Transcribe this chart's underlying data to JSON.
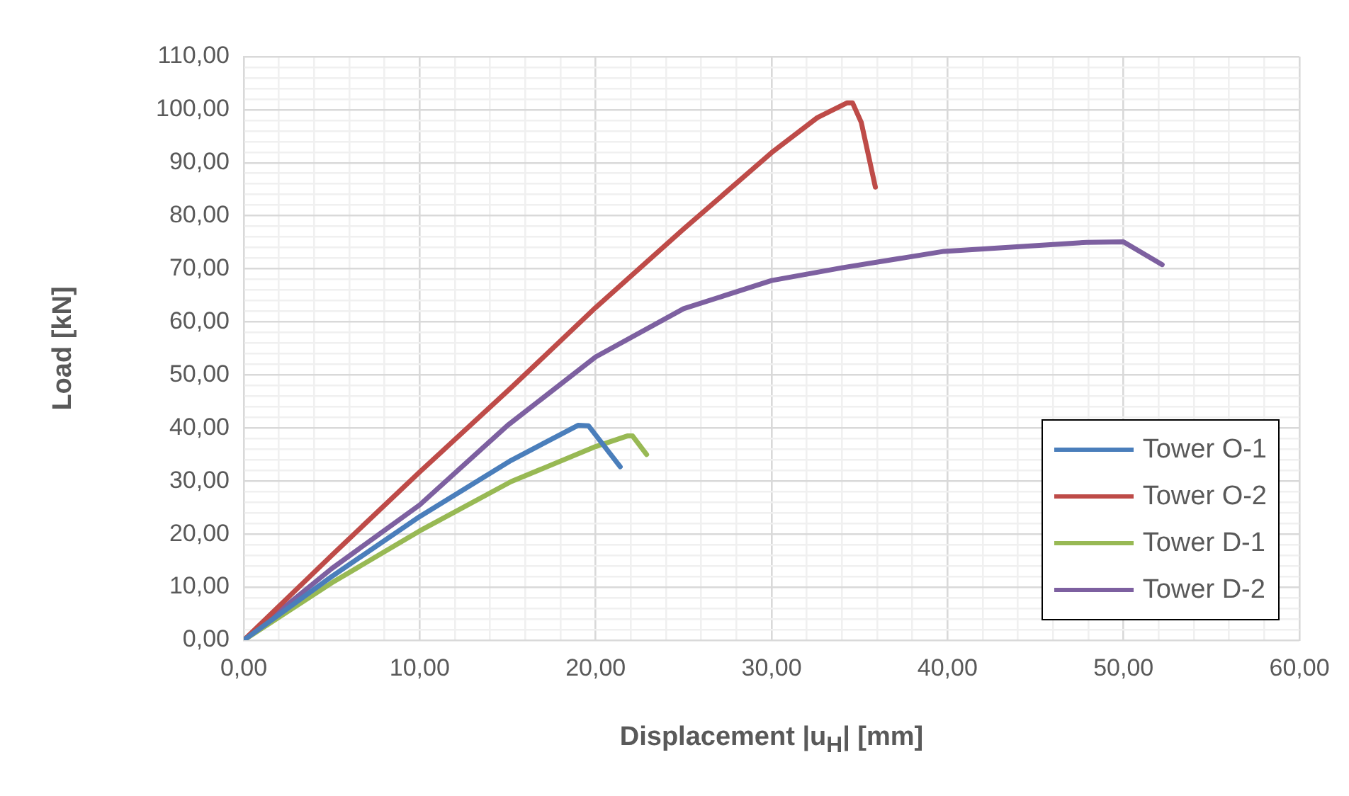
{
  "chart_data": {
    "type": "line",
    "xlabel": "Displacement |u$_{H}$| [mm]",
    "ylabel": "Load [kN]",
    "xlim": [
      0,
      60
    ],
    "ylim": [
      0,
      110
    ],
    "xticks": [
      {
        "value": 0,
        "label": "0,00"
      },
      {
        "value": 2,
        "label": null
      },
      {
        "value": 4,
        "label": null
      },
      {
        "value": 6,
        "label": null
      },
      {
        "value": 8,
        "label": null
      },
      {
        "value": 10,
        "label": "10,00"
      },
      {
        "value": 12,
        "label": null
      },
      {
        "value": 14,
        "label": null
      },
      {
        "value": 16,
        "label": null
      },
      {
        "value": 18,
        "label": null
      },
      {
        "value": 20,
        "label": "20,00"
      },
      {
        "value": 22,
        "label": null
      },
      {
        "value": 24,
        "label": null
      },
      {
        "value": 26,
        "label": null
      },
      {
        "value": 28,
        "label": null
      },
      {
        "value": 30,
        "label": "30,00"
      },
      {
        "value": 32,
        "label": null
      },
      {
        "value": 34,
        "label": null
      },
      {
        "value": 36,
        "label": null
      },
      {
        "value": 38,
        "label": null
      },
      {
        "value": 40,
        "label": "40,00"
      },
      {
        "value": 42,
        "label": null
      },
      {
        "value": 44,
        "label": null
      },
      {
        "value": 46,
        "label": null
      },
      {
        "value": 48,
        "label": null
      },
      {
        "value": 50,
        "label": "50,00"
      },
      {
        "value": 52,
        "label": null
      },
      {
        "value": 54,
        "label": null
      },
      {
        "value": 56,
        "label": null
      },
      {
        "value": 58,
        "label": null
      },
      {
        "value": 60,
        "label": "60,00"
      }
    ],
    "yticks": [
      {
        "value": 0,
        "label": "0,00"
      },
      {
        "value": 2,
        "label": null
      },
      {
        "value": 4,
        "label": null
      },
      {
        "value": 6,
        "label": null
      },
      {
        "value": 8,
        "label": null
      },
      {
        "value": 10,
        "label": "10,00"
      },
      {
        "value": 12,
        "label": null
      },
      {
        "value": 14,
        "label": null
      },
      {
        "value": 16,
        "label": null
      },
      {
        "value": 18,
        "label": null
      },
      {
        "value": 20,
        "label": "20,00"
      },
      {
        "value": 22,
        "label": null
      },
      {
        "value": 24,
        "label": null
      },
      {
        "value": 26,
        "label": null
      },
      {
        "value": 28,
        "label": null
      },
      {
        "value": 30,
        "label": "30,00"
      },
      {
        "value": 32,
        "label": null
      },
      {
        "value": 34,
        "label": null
      },
      {
        "value": 36,
        "label": null
      },
      {
        "value": 38,
        "label": null
      },
      {
        "value": 40,
        "label": "40,00"
      },
      {
        "value": 42,
        "label": null
      },
      {
        "value": 44,
        "label": null
      },
      {
        "value": 46,
        "label": null
      },
      {
        "value": 48,
        "label": null
      },
      {
        "value": 50,
        "label": "50,00"
      },
      {
        "value": 52,
        "label": null
      },
      {
        "value": 54,
        "label": null
      },
      {
        "value": 56,
        "label": null
      },
      {
        "value": 58,
        "label": null
      },
      {
        "value": 60,
        "label": "60,00"
      },
      {
        "value": 62,
        "label": null
      },
      {
        "value": 64,
        "label": null
      },
      {
        "value": 66,
        "label": null
      },
      {
        "value": 68,
        "label": null
      },
      {
        "value": 70,
        "label": "70,00"
      },
      {
        "value": 72,
        "label": null
      },
      {
        "value": 74,
        "label": null
      },
      {
        "value": 76,
        "label": null
      },
      {
        "value": 78,
        "label": null
      },
      {
        "value": 80,
        "label": "80,00"
      },
      {
        "value": 82,
        "label": null
      },
      {
        "value": 84,
        "label": null
      },
      {
        "value": 86,
        "label": null
      },
      {
        "value": 88,
        "label": null
      },
      {
        "value": 90,
        "label": "90,00"
      },
      {
        "value": 92,
        "label": null
      },
      {
        "value": 94,
        "label": null
      },
      {
        "value": 96,
        "label": null
      },
      {
        "value": 98,
        "label": null
      },
      {
        "value": 100,
        "label": "100,00"
      },
      {
        "value": 102,
        "label": null
      },
      {
        "value": 104,
        "label": null
      },
      {
        "value": 106,
        "label": null
      },
      {
        "value": 108,
        "label": null
      },
      {
        "value": 110,
        "label": "110,00"
      }
    ],
    "grid": true,
    "legend": "bottom right",
    "marker": "none",
    "line_style": "solid",
    "series": [
      {
        "name": "Tower O-1",
        "color": "#4a7ebb",
        "x": [
          0,
          5,
          10,
          15.2,
          19.0,
          19.6,
          21.4
        ],
        "values": [
          0,
          12.0,
          23.3,
          33.9,
          40.5,
          40.4,
          32.7
        ]
      },
      {
        "name": "Tower O-2",
        "color": "#be4b48",
        "x": [
          0,
          5,
          10,
          15.2,
          20,
          25,
          30,
          32.6,
          34.3,
          34.6,
          35.1,
          35.9
        ],
        "values": [
          0,
          16.0,
          31.7,
          47.6,
          62.7,
          77.5,
          91.9,
          98.5,
          101.3,
          101.3,
          97.6,
          85.4
        ]
      },
      {
        "name": "Tower D-1",
        "color": "#98b954",
        "x": [
          0,
          5,
          10,
          15.2,
          20,
          21.8,
          22.1,
          22.9
        ],
        "values": [
          0,
          10.8,
          20.6,
          29.9,
          36.5,
          38.5,
          38.5,
          35.0
        ]
      },
      {
        "name": "Tower D-2",
        "color": "#7d60a0",
        "x": [
          0,
          5,
          10,
          15,
          20,
          25,
          30,
          34,
          39.8,
          47.9,
          50.0,
          52.2
        ],
        "values": [
          0,
          13.5,
          25.5,
          40.5,
          53.4,
          62.5,
          67.8,
          70.2,
          73.3,
          75.0,
          75.1,
          70.8
        ]
      }
    ]
  }
}
